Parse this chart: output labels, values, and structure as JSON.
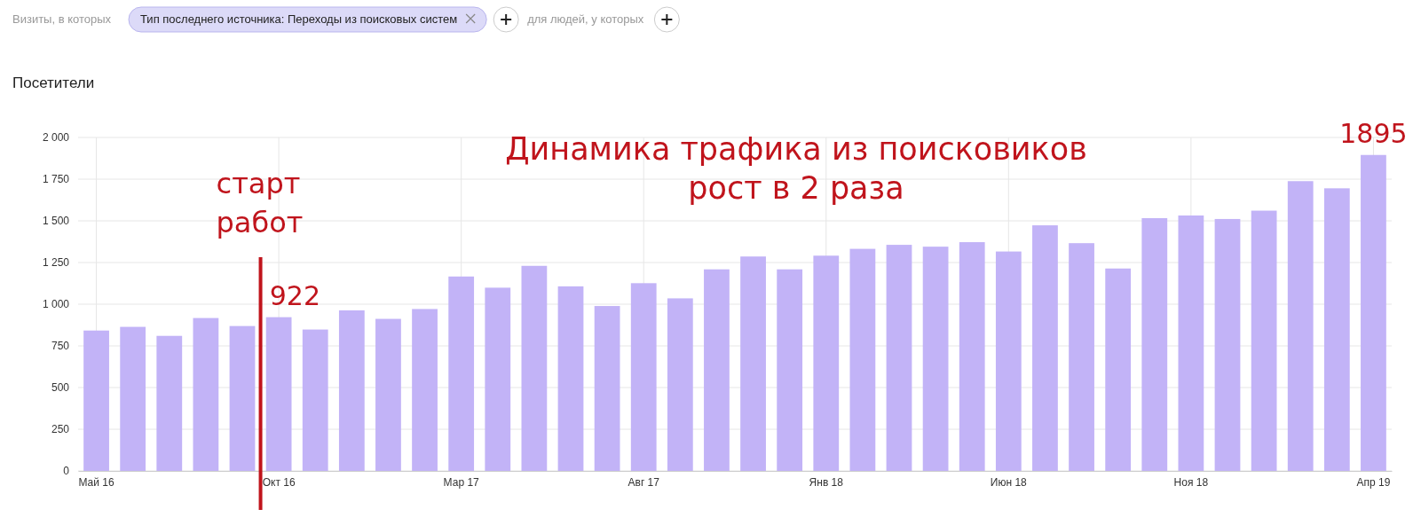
{
  "chart_data": {
    "type": "bar",
    "title": "Посетители",
    "categories": [
      "Май 16",
      null,
      null,
      null,
      null,
      "Окт 16",
      null,
      null,
      null,
      null,
      "Мар 17",
      null,
      null,
      null,
      null,
      "Авг 17",
      null,
      null,
      null,
      null,
      "Янв 18",
      null,
      null,
      null,
      null,
      "Июн 18",
      null,
      null,
      null,
      null,
      "Ноя 18",
      null,
      null,
      null,
      null,
      "Апр 19"
    ],
    "values": [
      842,
      864,
      810,
      917,
      869,
      922,
      848,
      963,
      912,
      971,
      1166,
      1099,
      1230,
      1107,
      989,
      1126,
      1035,
      1209,
      1286,
      1209,
      1291,
      1332,
      1356,
      1345,
      1372,
      1316,
      1473,
      1366,
      1214,
      1516,
      1532,
      1511,
      1561,
      1738,
      1695,
      1895
    ],
    "color": "#c2b3f7",
    "ylim": [
      0,
      2000
    ],
    "yticks": [
      0,
      {
        "value": 250,
        "label": "250"
      },
      {
        "value": 500,
        "label": "500"
      },
      {
        "value": 750,
        "label": "750"
      },
      {
        "value": 1000,
        "label": "1 000"
      },
      {
        "value": 1250,
        "label": "1 250"
      },
      {
        "value": 1500,
        "label": "1 500"
      },
      {
        "value": 1750,
        "label": "1 750"
      },
      {
        "value": 2000,
        "label": "2 000"
      }
    ],
    "grid": true,
    "ref_lines": [
      {
        "axis": "x",
        "value": "Окт 16",
        "label": "старт работ",
        "color": "#c0141c"
      }
    ],
    "annotations": [
      "Визиты, в которых",
      "Тип последнего источника: Переходы из поисковых систем",
      "для людей, у которых",
      "Динамика трафика из поисковиков\nрост в 2 раза",
      {
        "text": "922",
        "x": "Окт 16",
        "y": 922
      },
      {
        "text": "1895",
        "x": "Апр 19",
        "y": 1895
      }
    ]
  }
}
